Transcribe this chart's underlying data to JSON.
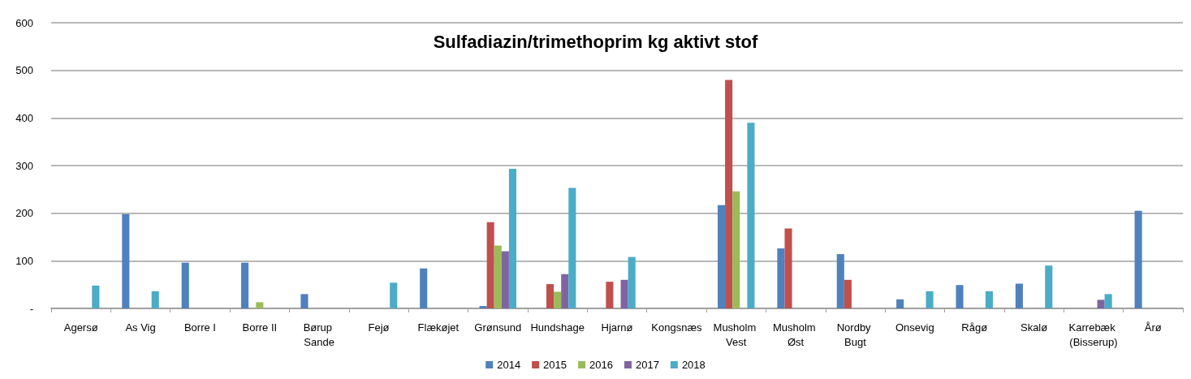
{
  "chart_data": {
    "type": "bar",
    "title": "Sulfadiazin/trimethoprim kg aktivt stof",
    "categories": [
      "Agersø",
      "As Vig",
      "Borre I",
      "Borre II",
      "Børup Sande",
      "Fejø",
      "Flækøjet",
      "Grønsund",
      "Hundshage",
      "Hjarnø",
      "Kongsnæs",
      "Musholm Vest",
      "Musholm Øst",
      "Nordby Bugt",
      "Onsevig",
      "Rågø",
      "Skalø",
      "Karrebæk (Bisserup)",
      "Årø"
    ],
    "series": [
      {
        "name": "2014",
        "color": "#4f81bd",
        "values": [
          null,
          198,
          96,
          96,
          30,
          null,
          84,
          5,
          null,
          null,
          null,
          217,
          126,
          114,
          19,
          49,
          52,
          null,
          205
        ]
      },
      {
        "name": "2015",
        "color": "#c0504d",
        "values": [
          null,
          null,
          null,
          null,
          null,
          null,
          null,
          181,
          51,
          56,
          null,
          480,
          168,
          60,
          null,
          null,
          null,
          null,
          null
        ]
      },
      {
        "name": "2016",
        "color": "#9bbb59",
        "values": [
          null,
          null,
          null,
          13,
          null,
          null,
          null,
          132,
          35,
          null,
          null,
          246,
          null,
          null,
          null,
          null,
          null,
          null,
          null
        ]
      },
      {
        "name": "2017",
        "color": "#8064a2",
        "values": [
          null,
          null,
          null,
          null,
          null,
          null,
          null,
          120,
          72,
          60,
          null,
          null,
          null,
          null,
          null,
          null,
          null,
          18,
          null
        ]
      },
      {
        "name": "2018",
        "color": "#4bacc6",
        "values": [
          48,
          36,
          null,
          null,
          null,
          54,
          null,
          293,
          253,
          108,
          null,
          390,
          null,
          null,
          36,
          36,
          90,
          30,
          null
        ]
      }
    ],
    "ylim": [
      0,
      600
    ],
    "yticks": [
      {
        "value": 0,
        "label": "-"
      },
      100,
      200,
      300,
      400,
      500,
      600
    ],
    "grid": "y",
    "legend": "bottom"
  }
}
